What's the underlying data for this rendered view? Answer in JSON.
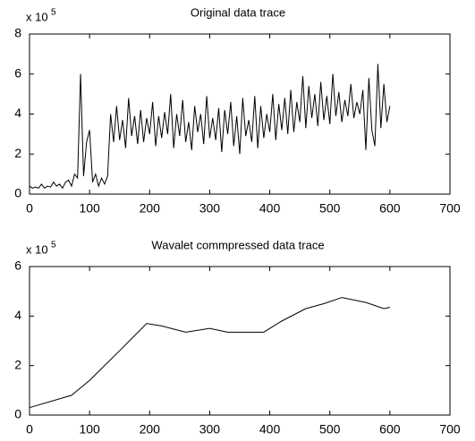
{
  "chart_data": [
    {
      "type": "line",
      "title": "Original data trace",
      "ylabel_base": "x 10",
      "ylabel_exponent": "5",
      "color": "#000000",
      "x": [
        0,
        5,
        10,
        15,
        20,
        25,
        30,
        35,
        40,
        45,
        50,
        55,
        60,
        65,
        70,
        75,
        80,
        85,
        90,
        95,
        100,
        105,
        110,
        115,
        120,
        125,
        130,
        135,
        140,
        145,
        150,
        155,
        160,
        165,
        170,
        175,
        180,
        185,
        190,
        195,
        200,
        205,
        210,
        215,
        220,
        225,
        230,
        235,
        240,
        245,
        250,
        255,
        260,
        265,
        270,
        275,
        280,
        285,
        290,
        295,
        300,
        305,
        310,
        315,
        320,
        325,
        330,
        335,
        340,
        345,
        350,
        355,
        360,
        365,
        370,
        375,
        380,
        385,
        390,
        395,
        400,
        405,
        410,
        415,
        420,
        425,
        430,
        435,
        440,
        445,
        450,
        455,
        460,
        465,
        470,
        475,
        480,
        485,
        490,
        495,
        500,
        505,
        510,
        515,
        520,
        525,
        530,
        535,
        540,
        545,
        550,
        555,
        560,
        565,
        570,
        575,
        580,
        585,
        590,
        595,
        600
      ],
      "values": [
        0.4,
        0.3,
        0.35,
        0.3,
        0.5,
        0.3,
        0.4,
        0.35,
        0.6,
        0.4,
        0.5,
        0.3,
        0.6,
        0.7,
        0.4,
        1.0,
        0.8,
        6.0,
        0.9,
        2.6,
        3.2,
        0.6,
        1.0,
        0.4,
        0.8,
        0.5,
        0.9,
        4.0,
        2.6,
        4.4,
        2.7,
        3.7,
        2.3,
        4.8,
        2.9,
        3.9,
        2.5,
        4.2,
        2.6,
        3.8,
        3.0,
        4.6,
        2.4,
        3.9,
        2.8,
        4.1,
        3.0,
        5.0,
        2.3,
        4.0,
        2.9,
        4.7,
        2.6,
        3.6,
        2.2,
        4.4,
        3.1,
        4.0,
        2.5,
        4.9,
        2.8,
        3.8,
        2.7,
        4.3,
        2.1,
        4.2,
        3.0,
        4.6,
        2.4,
        3.9,
        2.0,
        4.8,
        2.9,
        3.7,
        2.6,
        4.9,
        2.3,
        4.4,
        2.8,
        4.0,
        3.1,
        5.0,
        2.7,
        4.5,
        3.2,
        4.8,
        3.0,
        5.2,
        3.1,
        4.6,
        3.6,
        5.9,
        3.3,
        5.4,
        3.8,
        5.0,
        3.4,
        5.6,
        3.7,
        4.9,
        3.5,
        6.0,
        3.9,
        5.1,
        3.6,
        4.7,
        3.9,
        5.5,
        3.8,
        4.6,
        4.0,
        5.2,
        2.2,
        5.8,
        3.2,
        2.4,
        6.5,
        3.3,
        5.5,
        3.6,
        4.4
      ],
      "xlim": [
        0,
        700
      ],
      "xticks": [
        0,
        100,
        200,
        300,
        400,
        500,
        600,
        700
      ],
      "ylim": [
        0,
        8
      ],
      "yticks": [
        0,
        2,
        4,
        6,
        8
      ]
    },
    {
      "type": "line",
      "title": "Wavalet commpressed data trace",
      "ylabel_base": "x 10",
      "ylabel_exponent": "5",
      "color": "#000000",
      "x": [
        0,
        70,
        100,
        150,
        195,
        220,
        260,
        300,
        330,
        390,
        420,
        460,
        490,
        520,
        560,
        590,
        600
      ],
      "values": [
        0.3,
        0.8,
        1.4,
        2.6,
        3.7,
        3.6,
        3.35,
        3.5,
        3.35,
        3.35,
        3.8,
        4.3,
        4.5,
        4.75,
        4.55,
        4.3,
        4.35
      ],
      "xlim": [
        0,
        700
      ],
      "xticks": [
        0,
        100,
        200,
        300,
        400,
        500,
        600,
        700
      ],
      "ylim": [
        0,
        6
      ],
      "yticks": [
        0,
        2,
        4,
        6
      ]
    }
  ]
}
